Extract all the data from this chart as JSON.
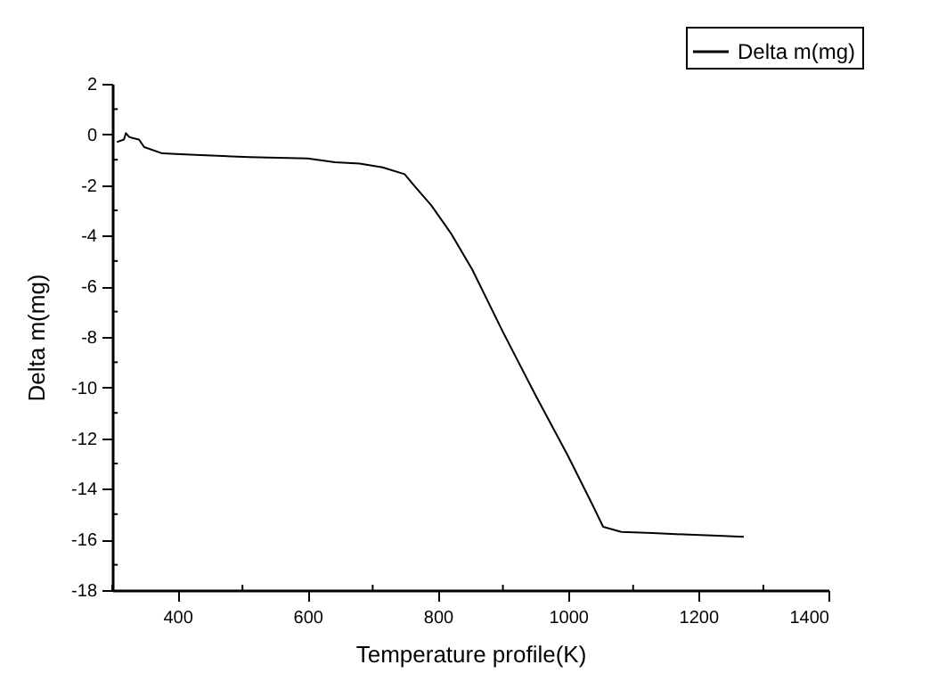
{
  "chart_data": {
    "type": "line",
    "xlabel": "Temperature profile(K)",
    "ylabel": "Delta m(mg)",
    "xlim": [
      300,
      1400
    ],
    "xticks": [
      400,
      600,
      800,
      1000,
      1200,
      1400
    ],
    "ylim": [
      -18,
      2
    ],
    "yticks": [
      -18,
      -16,
      -14,
      -12,
      -10,
      -8,
      -6,
      -4,
      -2,
      0,
      2
    ],
    "grid": false,
    "legend": "top right",
    "series": [
      {
        "name": "Delta m(mg)",
        "color": "#000000",
        "x": [
          307,
          318,
          321,
          326,
          332,
          341,
          349,
          377,
          420,
          510,
          600,
          642,
          680,
          715,
          749,
          763,
          790,
          820,
          853,
          900,
          950,
          1000,
          1037,
          1054,
          1082,
          1130,
          1177,
          1230,
          1270
        ],
        "values": [
          -0.3,
          -0.2,
          0.05,
          -0.1,
          -0.15,
          -0.2,
          -0.5,
          -0.75,
          -0.8,
          -0.9,
          -0.95,
          -1.1,
          -1.15,
          -1.3,
          -1.57,
          -2,
          -2.8,
          -3.9,
          -5.34,
          -7.8,
          -10.3,
          -12.7,
          -14.6,
          -15.5,
          -15.7,
          -15.75,
          -15.8,
          -15.85,
          -15.9
        ]
      }
    ]
  }
}
